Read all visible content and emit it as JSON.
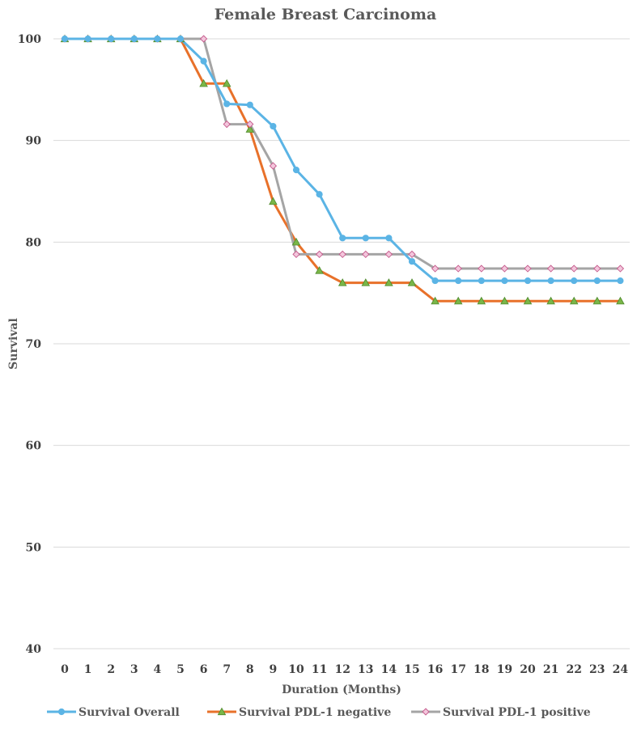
{
  "chart_data": {
    "type": "line",
    "title": "Female Breast Carcinoma",
    "xlabel": "Duration (Months)",
    "ylabel": "Survival",
    "ylim": [
      40,
      100
    ],
    "yticks": [
      40,
      50,
      60,
      70,
      80,
      90,
      100
    ],
    "grid": true,
    "legend_position": "bottom",
    "categories": [
      "0",
      "1",
      "2",
      "3",
      "4",
      "5",
      "6",
      "7",
      "8",
      "9",
      "10",
      "11",
      "12",
      "13",
      "14",
      "15",
      "16",
      "17",
      "18",
      "19",
      "20",
      "21",
      "22",
      "23",
      "24"
    ],
    "series": [
      {
        "name": "Survival Overall",
        "color": "#5bb4e5",
        "marker": "circle",
        "values": [
          100,
          100,
          100,
          100,
          100,
          100,
          97.8,
          93.6,
          93.5,
          91.4,
          87.1,
          84.7,
          80.4,
          80.4,
          80.4,
          78.1,
          76.2,
          76.2,
          76.2,
          76.2,
          76.2,
          76.2,
          76.2,
          76.2,
          76.2
        ]
      },
      {
        "name": "Survival PDL-1 negative",
        "color": "#e8712a",
        "marker": "triangle",
        "marker_fill": "#7ab648",
        "values": [
          100,
          100,
          100,
          100,
          100,
          100,
          95.6,
          95.6,
          91.1,
          84.0,
          80.0,
          77.2,
          76.0,
          76.0,
          76.0,
          76.0,
          74.2,
          74.2,
          74.2,
          74.2,
          74.2,
          74.2,
          74.2,
          74.2,
          74.2
        ]
      },
      {
        "name": "Survival PDL-1 positive",
        "color": "#a5a5a5",
        "marker": "diamond",
        "marker_fill": "#c4588a",
        "values": [
          100,
          100,
          100,
          100,
          100,
          100,
          100,
          91.6,
          91.6,
          87.5,
          78.8,
          78.8,
          78.8,
          78.8,
          78.8,
          78.8,
          77.4,
          77.4,
          77.4,
          77.4,
          77.4,
          77.4,
          77.4,
          77.4,
          77.4
        ]
      }
    ]
  }
}
